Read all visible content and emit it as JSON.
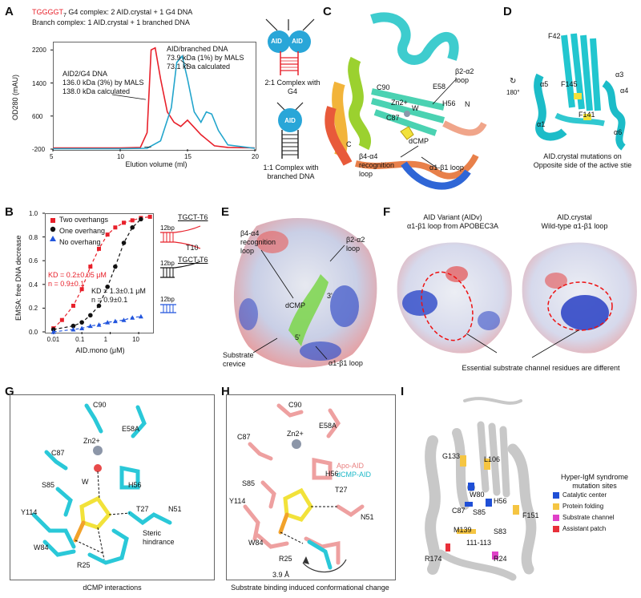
{
  "panels": {
    "A": "A",
    "B": "B",
    "C": "C",
    "D": "D",
    "E": "E",
    "F": "F",
    "G": "G",
    "H": "H",
    "I": "I"
  },
  "panelA": {
    "line1_g4": "TGGGGT",
    "line1_sub": "7",
    "line1_rest": " G4 complex: 2 AID.crystal + 1 G4 DNA",
    "line2": "Branch complex: 1 AID.crystal + 1 branched DNA",
    "ylabel": "OD280 (mAU)",
    "xlabel": "Elution volume (ml)",
    "annot_left_1": "AID2/G4 DNA",
    "annot_left_2": "136.0 kDa (3%) by MALS",
    "annot_left_3": "138.0 kDa calculated",
    "annot_right_1": "AID/branched DNA",
    "annot_right_2": "73.9 kDa (1%) by MALS",
    "annot_right_3": "73.1 kDa calculated",
    "cartoon_g4_label": "2:1 Complex with G4",
    "cartoon_branch_label": "1:1 Complex with branched DNA",
    "aid_label": "AID"
  },
  "panelB": {
    "ylabel": "EMSA: free DNA decrease",
    "xlabel": "AID.mono (μM)",
    "legend": [
      "Two overhangs",
      "One overhang",
      "No overhang"
    ],
    "kd_red_1": "KD = 0.2±0.05 μM",
    "kd_red_2": "n = 0.9±0.1",
    "kd_black_1": "KD = 1.3±0.1 μM",
    "kd_black_2": "n = 0.9±0.1",
    "dna_top_label": "TGCT-T6",
    "dna_t10": "T10",
    "dna_12bp": "12bp"
  },
  "panelC": {
    "labels": [
      "C90",
      "E58",
      "Zn2+",
      "H56",
      "W",
      "C87",
      "dCMP",
      "N",
      "C"
    ],
    "loop_b2a2": "β2-α2 loop",
    "loop_b4a4": "β4-α4 recognition loop",
    "loop_a1b1": "α1-β1 loop"
  },
  "panelD": {
    "labels": [
      "F42",
      "α5",
      "F145",
      "α3",
      "α4",
      "α1",
      "F141",
      "α6"
    ],
    "rotation": "180°",
    "caption": "AID.crystal mutations on Opposite side of the active stie"
  },
  "panelE": {
    "loop_b4a4": "β4-α4 recognition loop",
    "loop_b2a2": "β2-α2 loop",
    "dcmp": "dCMP",
    "three_prime": "3'",
    "five_prime": "5'",
    "crevice": "Substrate crevice",
    "loop_a1b1": "α1-β1 loop"
  },
  "panelF": {
    "left_title_1": "AID Variant (AIDv)",
    "left_title_2": "α1-β1 loop from APOBEC3A",
    "right_title_1": "AID.crystal",
    "right_title_2": "Wild-type α1-β1 loop",
    "caption": "Essential substrate channel residues are different"
  },
  "panelG": {
    "labels": [
      "C90",
      "E58A",
      "C87",
      "Zn2+",
      "W",
      "H56",
      "S85",
      "T27",
      "N51",
      "Y114",
      "W84",
      "R25"
    ],
    "steric": "Steric hindrance",
    "caption": "dCMP interactions"
  },
  "panelH": {
    "labels": [
      "C90",
      "E58A",
      "C87",
      "Zn2+",
      "H56",
      "S85",
      "T27",
      "Y114",
      "N51",
      "W84",
      "R25"
    ],
    "legend_apo": "Apo-AID",
    "legend_dcmp": "dCMP-AID",
    "distance": "3.9 Å",
    "caption": "Substrate binding induced conformational change"
  },
  "panelI": {
    "labels": [
      "G133",
      "L106",
      "W80",
      "C87",
      "H56",
      "F151",
      "S85",
      "M139",
      "S83",
      "111-113",
      "R174",
      "R24"
    ],
    "legend_title": "Hyper-IgM syndrome mutation sites",
    "legend_items": [
      "Catalytic center",
      "Protein folding",
      "Substrate channel",
      "Assistant patch"
    ],
    "legend_colors": [
      "#1f4fd6",
      "#f5c542",
      "#e040c8",
      "#e8303a"
    ]
  },
  "chart_data": [
    {
      "type": "line",
      "panel": "A",
      "xlabel": "Elution volume (ml)",
      "ylabel": "OD280 (mAU)",
      "xlim": [
        5,
        20
      ],
      "ylim": [
        -200,
        2400
      ],
      "xticks": [
        5,
        10,
        15,
        20
      ],
      "yticks": [
        -200,
        600,
        1400,
        2200
      ],
      "series": [
        {
          "color": "#e8202a",
          "x": [
            5,
            10,
            11.5,
            12,
            12.3,
            12.6,
            13,
            13.5,
            14,
            14.5,
            15,
            16,
            17,
            18,
            20
          ],
          "y": [
            -170,
            -170,
            -160,
            200,
            2200,
            2250,
            1500,
            700,
            450,
            350,
            500,
            150,
            -120,
            -160,
            -170
          ]
        },
        {
          "color": "#22a5cc",
          "x": [
            5,
            10,
            12,
            13,
            13.8,
            14.2,
            14.6,
            15,
            15.5,
            16,
            16.4,
            16.8,
            17.3,
            18,
            20
          ],
          "y": [
            -190,
            -190,
            -180,
            0,
            800,
            1900,
            2050,
            1500,
            700,
            450,
            700,
            650,
            250,
            -100,
            -180
          ]
        }
      ]
    },
    {
      "type": "scatter",
      "panel": "B",
      "xlabel": "AID.mono (μM)",
      "ylabel": "EMSA: free DNA decrease",
      "xscale": "log",
      "xlim": [
        0.005,
        30
      ],
      "ylim": [
        0,
        1.0
      ],
      "xticks": [
        0.01,
        0.1,
        1,
        10
      ],
      "yticks": [
        0,
        0.2,
        0.4,
        0.6,
        0.8,
        1.0
      ],
      "series": [
        {
          "name": "Two overhangs",
          "color": "#e8202a",
          "x": [
            0.01,
            0.02,
            0.05,
            0.1,
            0.2,
            0.4,
            0.8,
            1.5,
            3,
            6,
            12,
            25
          ],
          "y": [
            0.03,
            0.1,
            0.22,
            0.36,
            0.55,
            0.7,
            0.82,
            0.88,
            0.92,
            0.94,
            0.96,
            0.97
          ]
        },
        {
          "name": "One overhang",
          "color": "#111111",
          "x": [
            0.01,
            0.05,
            0.1,
            0.2,
            0.4,
            0.8,
            1.5,
            3,
            6,
            12
          ],
          "y": [
            0.02,
            0.05,
            0.08,
            0.14,
            0.22,
            0.38,
            0.55,
            0.75,
            0.88,
            0.95
          ]
        },
        {
          "name": "No overhang",
          "color": "#2255dd",
          "x": [
            0.01,
            0.05,
            0.1,
            0.2,
            0.4,
            0.8,
            1.5,
            3,
            6,
            12
          ],
          "y": [
            0.0,
            0.02,
            0.03,
            0.05,
            0.06,
            0.08,
            0.09,
            0.1,
            0.12,
            0.13
          ]
        }
      ]
    }
  ]
}
